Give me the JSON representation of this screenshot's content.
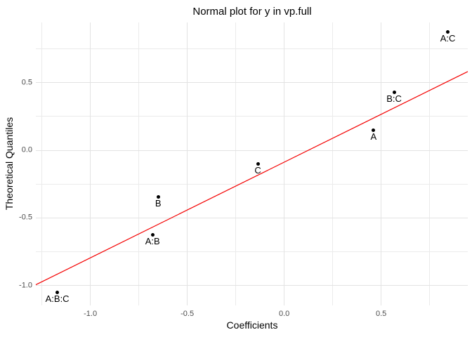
{
  "chart_data": {
    "type": "scatter",
    "title": "Normal plot for y in vp.full",
    "xlabel": "Coefficients",
    "ylabel": "Theoretical Quantiles",
    "xlim": [
      -1.281,
      0.947
    ],
    "ylim": [
      -1.146,
      0.944
    ],
    "grid": true,
    "legend": "none",
    "x_major_ticks": [
      -1.0,
      -0.5,
      0.0,
      0.5
    ],
    "x_tick_labels": [
      "-1.0",
      "-0.5",
      "0.0",
      "0.5"
    ],
    "x_minor_ticks": [
      -1.25,
      -0.75,
      -0.25,
      0.25,
      0.75
    ],
    "y_major_ticks": [
      0.5,
      0.0,
      -0.5,
      -1.0
    ],
    "y_tick_labels": [
      "0.5",
      "0.0",
      "-0.5",
      "-1.0"
    ],
    "y_minor_ticks": [
      0.75,
      0.25,
      -0.25,
      -0.75
    ],
    "points": [
      {
        "label": "A:B:C",
        "x": -1.17,
        "y": -1.051
      },
      {
        "label": "A:B",
        "x": -0.679,
        "y": -0.624
      },
      {
        "label": "B",
        "x": -0.65,
        "y": -0.346
      },
      {
        "label": "C",
        "x": -0.136,
        "y": -0.1
      },
      {
        "label": "A",
        "x": 0.461,
        "y": 0.15
      },
      {
        "label": "B:C",
        "x": 0.567,
        "y": 0.427
      },
      {
        "label": "A:C",
        "x": 0.844,
        "y": 0.873
      }
    ],
    "ref_line": {
      "slope": 0.707,
      "intercept": -0.088
    }
  },
  "colors": {
    "background": "#ffffff",
    "grid_major": "#e3e3e3",
    "grid_minor": "#ebebeb",
    "ref_line": "#f40000",
    "point": "#000000",
    "point_label": "#000000",
    "tick_label": "#4d4d4d",
    "axis_title": "#000000",
    "title": "#000000"
  }
}
